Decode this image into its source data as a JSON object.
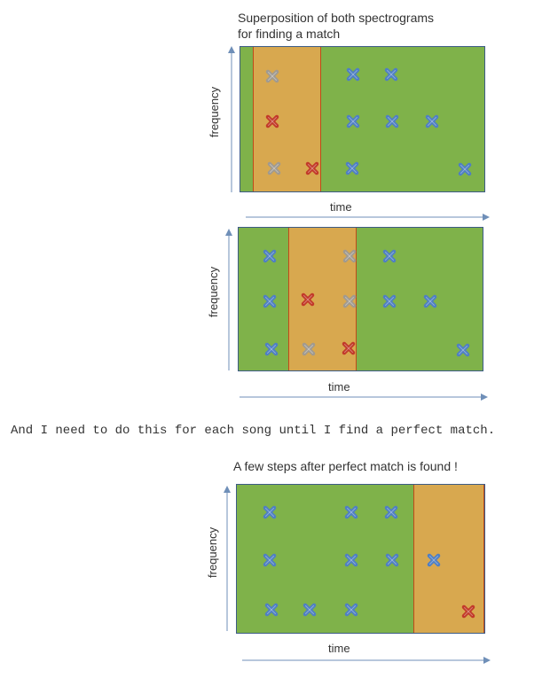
{
  "captions": {
    "top_line1": "Superposition of both spectrograms",
    "top_line2": "for finding a match",
    "bottom": "A few steps after perfect match is found !"
  },
  "paragraph": "And I need to do this for each song until I find a perfect match.",
  "colors": {
    "background": "#7fb24a",
    "window": "#d8a84f",
    "blue_mark": "#4f7fc4",
    "red_mark": "#c23a2a",
    "gray_mark": "#a09a90",
    "frame": "#3d5c86",
    "arrow": "#6f8fb8"
  },
  "diagrams": [
    {
      "ylabel": "frequency",
      "xlabel": "time",
      "marks": [
        "gray",
        "red",
        "gray",
        "red",
        "blue",
        "blue",
        "blue",
        "blue",
        "blue",
        "blue",
        "blue",
        "blue"
      ]
    },
    {
      "ylabel": "frequency",
      "xlabel": "time",
      "marks": [
        "blue",
        "blue",
        "blue",
        "red",
        "gray",
        "gray",
        "gray",
        "red",
        "blue",
        "blue",
        "blue",
        "blue"
      ]
    },
    {
      "ylabel": "frequency",
      "xlabel": "time",
      "marks": [
        "blue",
        "blue",
        "blue",
        "blue",
        "blue",
        "blue",
        "blue",
        "blue",
        "blue",
        "blue",
        "red",
        "red"
      ]
    }
  ]
}
